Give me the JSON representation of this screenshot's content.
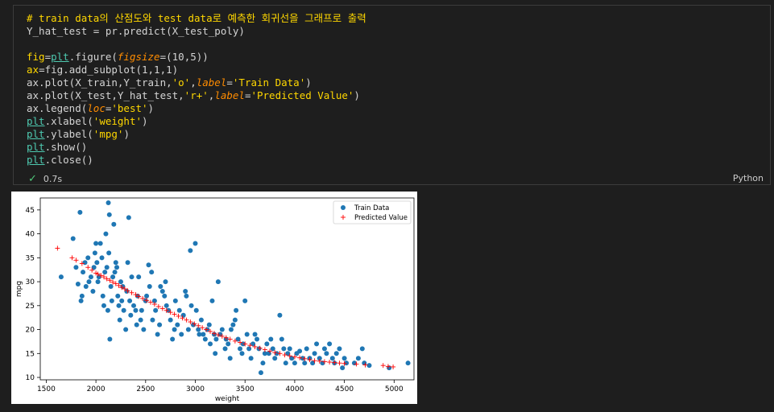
{
  "cell": {
    "code_lines": [
      "# train data의 산점도와 test data로 예측한 회귀선을 그래프로 출력",
      "Y_hat_test = pr.predict(X_test_poly)",
      "",
      "fig=plt.figure(figsize=(10,5))",
      "ax=fig.add_subplot(1,1,1)",
      "ax.plot(X_train,Y_train,'o',label='Train Data')",
      "ax.plot(X_test,Y_hat_test,'r+',label='Predicted Value')",
      "ax.legend(loc='best')",
      "plt.xlabel('weight')",
      "plt.ylabel('mpg')",
      "plt.show()",
      "plt.close()"
    ],
    "status_icon": "check-icon",
    "exec_time": "0.7s",
    "language": "Python"
  },
  "chart_data": {
    "type": "scatter",
    "xlabel": "weight",
    "ylabel": "mpg",
    "xlim": [
      1440,
      5200
    ],
    "ylim": [
      9.5,
      47.5
    ],
    "xticks": [
      1500,
      2000,
      2500,
      3000,
      3500,
      4000,
      4500,
      5000
    ],
    "yticks": [
      10,
      15,
      20,
      25,
      30,
      35,
      40,
      45
    ],
    "legend": {
      "placement": "top-right",
      "entries": [
        "Train Data",
        "Predicted Value"
      ]
    },
    "colors": {
      "train": "#1f77b4",
      "predicted": "#ff0000"
    },
    "series": [
      {
        "name": "Train Data",
        "marker": "o",
        "points": [
          [
            1650,
            31
          ],
          [
            1770,
            39
          ],
          [
            1800,
            33
          ],
          [
            1820,
            29.5
          ],
          [
            1840,
            44.5
          ],
          [
            1850,
            26
          ],
          [
            1860,
            27
          ],
          [
            1870,
            32
          ],
          [
            1890,
            34
          ],
          [
            1900,
            29
          ],
          [
            1920,
            35
          ],
          [
            1930,
            30
          ],
          [
            1950,
            31
          ],
          [
            1970,
            28
          ],
          [
            1980,
            33
          ],
          [
            1990,
            36
          ],
          [
            2000,
            38
          ],
          [
            2010,
            34
          ],
          [
            2020,
            30
          ],
          [
            2030,
            31
          ],
          [
            2045,
            38
          ],
          [
            2060,
            35
          ],
          [
            2070,
            27
          ],
          [
            2080,
            25
          ],
          [
            2090,
            32
          ],
          [
            2100,
            40
          ],
          [
            2110,
            33
          ],
          [
            2120,
            24
          ],
          [
            2125,
            46.5
          ],
          [
            2130,
            36
          ],
          [
            2135,
            44
          ],
          [
            2140,
            18
          ],
          [
            2150,
            29
          ],
          [
            2160,
            26
          ],
          [
            2170,
            31
          ],
          [
            2180,
            42
          ],
          [
            2190,
            32
          ],
          [
            2200,
            34
          ],
          [
            2210,
            33
          ],
          [
            2220,
            27
          ],
          [
            2230,
            25
          ],
          [
            2240,
            22
          ],
          [
            2250,
            30
          ],
          [
            2260,
            26
          ],
          [
            2270,
            29
          ],
          [
            2280,
            24
          ],
          [
            2300,
            20
          ],
          [
            2310,
            28
          ],
          [
            2320,
            34
          ],
          [
            2330,
            43.4
          ],
          [
            2340,
            26
          ],
          [
            2350,
            23
          ],
          [
            2360,
            31
          ],
          [
            2380,
            25
          ],
          [
            2400,
            24
          ],
          [
            2410,
            21
          ],
          [
            2420,
            27
          ],
          [
            2430,
            31
          ],
          [
            2450,
            22
          ],
          [
            2460,
            24
          ],
          [
            2480,
            20
          ],
          [
            2500,
            26
          ],
          [
            2510,
            27
          ],
          [
            2530,
            33.5
          ],
          [
            2540,
            29
          ],
          [
            2560,
            32
          ],
          [
            2570,
            22
          ],
          [
            2590,
            26
          ],
          [
            2600,
            24
          ],
          [
            2620,
            19
          ],
          [
            2640,
            21
          ],
          [
            2650,
            29
          ],
          [
            2670,
            28
          ],
          [
            2690,
            27
          ],
          [
            2700,
            30
          ],
          [
            2710,
            25
          ],
          [
            2730,
            24
          ],
          [
            2750,
            22
          ],
          [
            2770,
            18
          ],
          [
            2790,
            20
          ],
          [
            2800,
            26
          ],
          [
            2820,
            21
          ],
          [
            2840,
            24
          ],
          [
            2860,
            19
          ],
          [
            2880,
            23
          ],
          [
            2900,
            28
          ],
          [
            2910,
            27
          ],
          [
            2930,
            20
          ],
          [
            2950,
            36.5
          ],
          [
            2960,
            25
          ],
          [
            2980,
            21
          ],
          [
            3000,
            38
          ],
          [
            3010,
            24
          ],
          [
            3030,
            20
          ],
          [
            3040,
            19
          ],
          [
            3060,
            22
          ],
          [
            3080,
            19
          ],
          [
            3100,
            18
          ],
          [
            3120,
            20
          ],
          [
            3140,
            21
          ],
          [
            3150,
            17
          ],
          [
            3170,
            26
          ],
          [
            3190,
            19
          ],
          [
            3200,
            15
          ],
          [
            3210,
            18
          ],
          [
            3230,
            30
          ],
          [
            3250,
            19
          ],
          [
            3270,
            20
          ],
          [
            3300,
            16
          ],
          [
            3310,
            18
          ],
          [
            3330,
            17
          ],
          [
            3350,
            14
          ],
          [
            3360,
            20
          ],
          [
            3380,
            21
          ],
          [
            3400,
            22
          ],
          [
            3410,
            24
          ],
          [
            3430,
            18
          ],
          [
            3450,
            16
          ],
          [
            3470,
            15
          ],
          [
            3480,
            17
          ],
          [
            3500,
            26
          ],
          [
            3520,
            19
          ],
          [
            3540,
            16
          ],
          [
            3560,
            14
          ],
          [
            3580,
            17
          ],
          [
            3600,
            19
          ],
          [
            3620,
            18
          ],
          [
            3640,
            16
          ],
          [
            3660,
            11
          ],
          [
            3680,
            13
          ],
          [
            3700,
            15
          ],
          [
            3720,
            17
          ],
          [
            3740,
            15
          ],
          [
            3760,
            18
          ],
          [
            3780,
            16
          ],
          [
            3800,
            14
          ],
          [
            3820,
            15
          ],
          [
            3850,
            23
          ],
          [
            3870,
            18
          ],
          [
            3890,
            16
          ],
          [
            3910,
            13
          ],
          [
            3930,
            15
          ],
          [
            3950,
            16
          ],
          [
            3970,
            14
          ],
          [
            4000,
            13
          ],
          [
            4020,
            15
          ],
          [
            4050,
            15.5
          ],
          [
            4080,
            14
          ],
          [
            4100,
            13
          ],
          [
            4120,
            16
          ],
          [
            4150,
            14
          ],
          [
            4180,
            13
          ],
          [
            4200,
            15
          ],
          [
            4220,
            17
          ],
          [
            4250,
            14
          ],
          [
            4280,
            13
          ],
          [
            4300,
            16
          ],
          [
            4320,
            15
          ],
          [
            4350,
            17
          ],
          [
            4380,
            14
          ],
          [
            4400,
            13
          ],
          [
            4420,
            15
          ],
          [
            4450,
            16
          ],
          [
            4480,
            12
          ],
          [
            4500,
            14
          ],
          [
            4520,
            13
          ],
          [
            4600,
            13
          ],
          [
            4640,
            14
          ],
          [
            4680,
            16
          ],
          [
            4700,
            13
          ],
          [
            4750,
            12.5
          ],
          [
            4950,
            12
          ],
          [
            5140,
            13
          ]
        ]
      },
      {
        "name": "Predicted Value",
        "marker": "r+",
        "points": [
          [
            1613,
            37
          ],
          [
            1760,
            35
          ],
          [
            1800,
            34.5
          ],
          [
            1860,
            33.8
          ],
          [
            1920,
            33
          ],
          [
            1960,
            32.4
          ],
          [
            2000,
            31.8
          ],
          [
            2020,
            31.6
          ],
          [
            2050,
            31.3
          ],
          [
            2080,
            31
          ],
          [
            2110,
            30.6
          ],
          [
            2140,
            30.3
          ],
          [
            2170,
            29.9
          ],
          [
            2200,
            29.6
          ],
          [
            2230,
            29.2
          ],
          [
            2260,
            28.8
          ],
          [
            2290,
            28.5
          ],
          [
            2320,
            28.1
          ],
          [
            2360,
            27.7
          ],
          [
            2400,
            27.3
          ],
          [
            2430,
            26.9
          ],
          [
            2470,
            26.5
          ],
          [
            2510,
            26.1
          ],
          [
            2550,
            25.7
          ],
          [
            2590,
            25.3
          ],
          [
            2630,
            24.8
          ],
          [
            2670,
            24.4
          ],
          [
            2710,
            24
          ],
          [
            2750,
            23.6
          ],
          [
            2790,
            23.2
          ],
          [
            2830,
            22.8
          ],
          [
            2870,
            22.4
          ],
          [
            2910,
            22
          ],
          [
            2950,
            21.6
          ],
          [
            2990,
            21.2
          ],
          [
            3030,
            20.8
          ],
          [
            3070,
            20.4
          ],
          [
            3110,
            20
          ],
          [
            3150,
            19.6
          ],
          [
            3190,
            19.2
          ],
          [
            3230,
            18.9
          ],
          [
            3270,
            18.6
          ],
          [
            3310,
            18.3
          ],
          [
            3350,
            18
          ],
          [
            3400,
            17.6
          ],
          [
            3450,
            17.3
          ],
          [
            3500,
            17
          ],
          [
            3550,
            16.7
          ],
          [
            3600,
            16.4
          ],
          [
            3650,
            16.1
          ],
          [
            3700,
            15.8
          ],
          [
            3750,
            15.5
          ],
          [
            3800,
            15.2
          ],
          [
            3850,
            15
          ],
          [
            3900,
            14.7
          ],
          [
            3950,
            14.5
          ],
          [
            4000,
            14.3
          ],
          [
            4050,
            14.1
          ],
          [
            4100,
            13.9
          ],
          [
            4150,
            13.7
          ],
          [
            4200,
            13.5
          ],
          [
            4250,
            13.4
          ],
          [
            4300,
            13.3
          ],
          [
            4350,
            13.2
          ],
          [
            4400,
            13.1
          ],
          [
            4450,
            13
          ],
          [
            4500,
            12.9
          ],
          [
            4620,
            12.8
          ],
          [
            4710,
            12.6
          ],
          [
            4890,
            12.5
          ],
          [
            4940,
            12.3
          ],
          [
            4990,
            12.2
          ]
        ]
      }
    ]
  }
}
